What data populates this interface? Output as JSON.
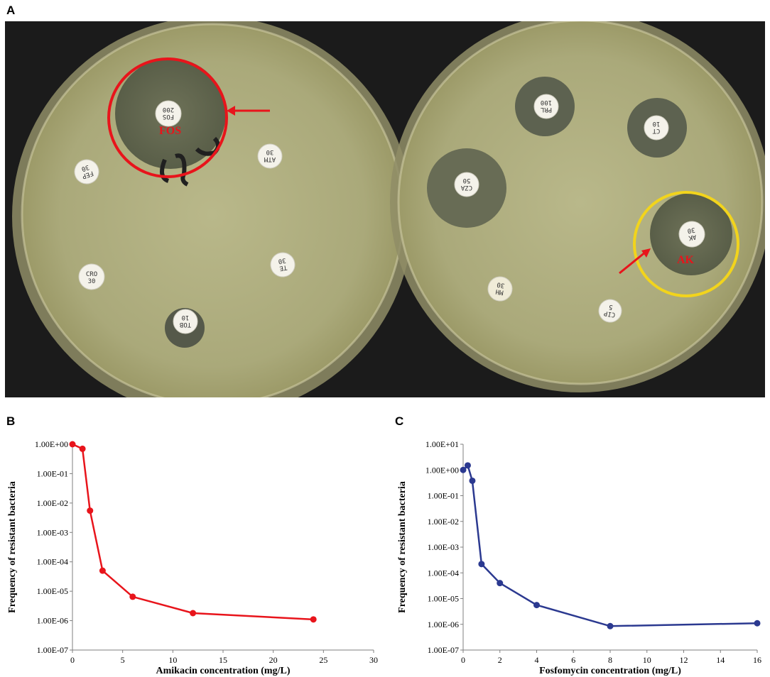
{
  "panels": {
    "a": "A",
    "b": "B",
    "c": "C"
  },
  "photo": {
    "left_plate": {
      "annotation": "FOS",
      "disks": [
        {
          "line1": "FOS",
          "line2": "200"
        },
        {
          "line1": "ATM",
          "line2": "30"
        },
        {
          "line1": "FEP",
          "line2": "30"
        },
        {
          "line1": "CRO",
          "line2": "30"
        },
        {
          "line1": "TE",
          "line2": "30"
        },
        {
          "line1": "TOB",
          "line2": "10"
        }
      ]
    },
    "right_plate": {
      "annotation": "AK",
      "disks": [
        {
          "line1": "PRL",
          "line2": "100"
        },
        {
          "line1": "CT",
          "line2": "10"
        },
        {
          "line1": "CZA",
          "line2": "50"
        },
        {
          "line1": "AK",
          "line2": "30"
        },
        {
          "line1": "MH",
          "line2": "30"
        },
        {
          "line1": "CIP",
          "line2": "5"
        }
      ]
    },
    "colors": {
      "highlight_fos": "#e8141b",
      "highlight_ak": "#f2d41c",
      "arrow": "#e8141b"
    }
  },
  "chart_data": [
    {
      "type": "line",
      "xlabel": "Amikacin concentration (mg/L)",
      "ylabel": "Frequency of resistant bacteria",
      "y_scale": "log",
      "xlim": [
        0,
        30
      ],
      "x_ticks": [
        "0",
        "5",
        "10",
        "15",
        "20",
        "25",
        "30"
      ],
      "y_ticks": [
        "1.00E+00",
        "1.00E-01",
        "1.00E-02",
        "1.00E-03",
        "1.00E-04",
        "1.00E-05",
        "1.00E-06",
        "1.00E-07"
      ],
      "color": "#e8141b",
      "x": [
        0,
        1,
        1.75,
        3,
        6,
        12,
        24
      ],
      "y": [
        1.0,
        0.7,
        0.0055,
        5e-05,
        6.5e-06,
        1.8e-06,
        1.1e-06
      ]
    },
    {
      "type": "line",
      "xlabel": "Fosfomycin concentration (mg/L)",
      "ylabel": "Frequency of resistant bacteria",
      "y_scale": "log",
      "xlim": [
        0,
        16
      ],
      "x_ticks": [
        "0",
        "2",
        "4",
        "6",
        "8",
        "10",
        "12",
        "14",
        "16"
      ],
      "y_ticks": [
        "1.00E+01",
        "1.00E+00",
        "1.00E-01",
        "1.00E-02",
        "1.00E-03",
        "1.00E-04",
        "1.00E-05",
        "1.00E-06",
        "1.00E-07"
      ],
      "color": "#2b3990",
      "x": [
        0,
        0.25,
        0.5,
        1,
        2,
        4,
        8,
        16
      ],
      "y": [
        1.0,
        1.5,
        0.38,
        0.00022,
        4e-05,
        5.6e-06,
        8.5e-07,
        1.1e-06
      ]
    }
  ]
}
